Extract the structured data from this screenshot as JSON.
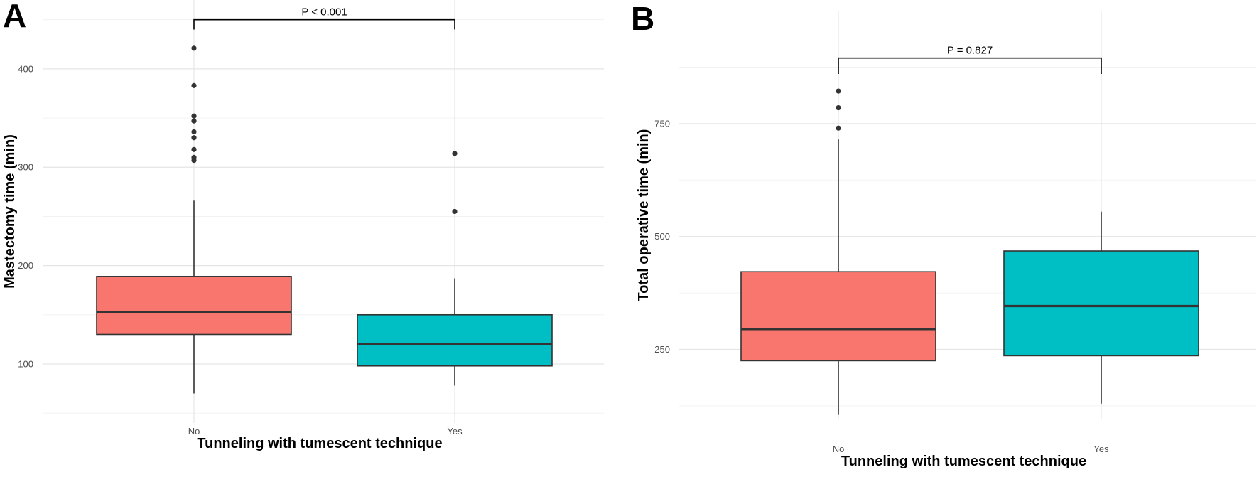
{
  "chart_data": [
    {
      "panel": "A",
      "type": "box",
      "xlabel": "Tunneling with tumescent technique",
      "ylabel": "Mastectomy time (min)",
      "categories": [
        "No",
        "Yes"
      ],
      "colors": [
        "#F8766D",
        "#00BFC4"
      ],
      "ylim": [
        40,
        470
      ],
      "yticks": [
        100,
        200,
        300,
        400
      ],
      "grid": true,
      "boxes": [
        {
          "category": "No",
          "whisker_low": 70,
          "q1": 130,
          "median": 153,
          "q3": 189,
          "whisker_high": 266,
          "outliers": [
            307,
            310,
            318,
            330,
            336,
            347,
            352,
            383,
            421
          ]
        },
        {
          "category": "Yes",
          "whisker_low": 78,
          "q1": 98,
          "median": 120,
          "q3": 150,
          "whisker_high": 187,
          "outliers": [
            255,
            314
          ]
        }
      ],
      "significance": {
        "label": "P < 0.001",
        "y": 450,
        "tick_bottom": 440
      }
    },
    {
      "panel": "B",
      "type": "box",
      "xlabel": "Tunneling with tumescent technique",
      "ylabel": "Total operative time (min)",
      "categories": [
        "No",
        "Yes"
      ],
      "colors": [
        "#F8766D",
        "#00BFC4"
      ],
      "ylim": [
        95,
        1000
      ],
      "yticks": [
        250,
        500,
        750
      ],
      "grid": true,
      "boxes": [
        {
          "category": "No",
          "whisker_low": 105,
          "q1": 225,
          "median": 295,
          "q3": 422,
          "whisker_high": 715,
          "outliers": [
            740,
            785,
            822
          ]
        },
        {
          "category": "Yes",
          "whisker_low": 130,
          "q1": 236,
          "median": 346,
          "q3": 468,
          "whisker_high": 555,
          "outliers": []
        }
      ],
      "significance": {
        "label": "P = 0.827",
        "y": 895,
        "tick_bottom": 860
      }
    }
  ]
}
